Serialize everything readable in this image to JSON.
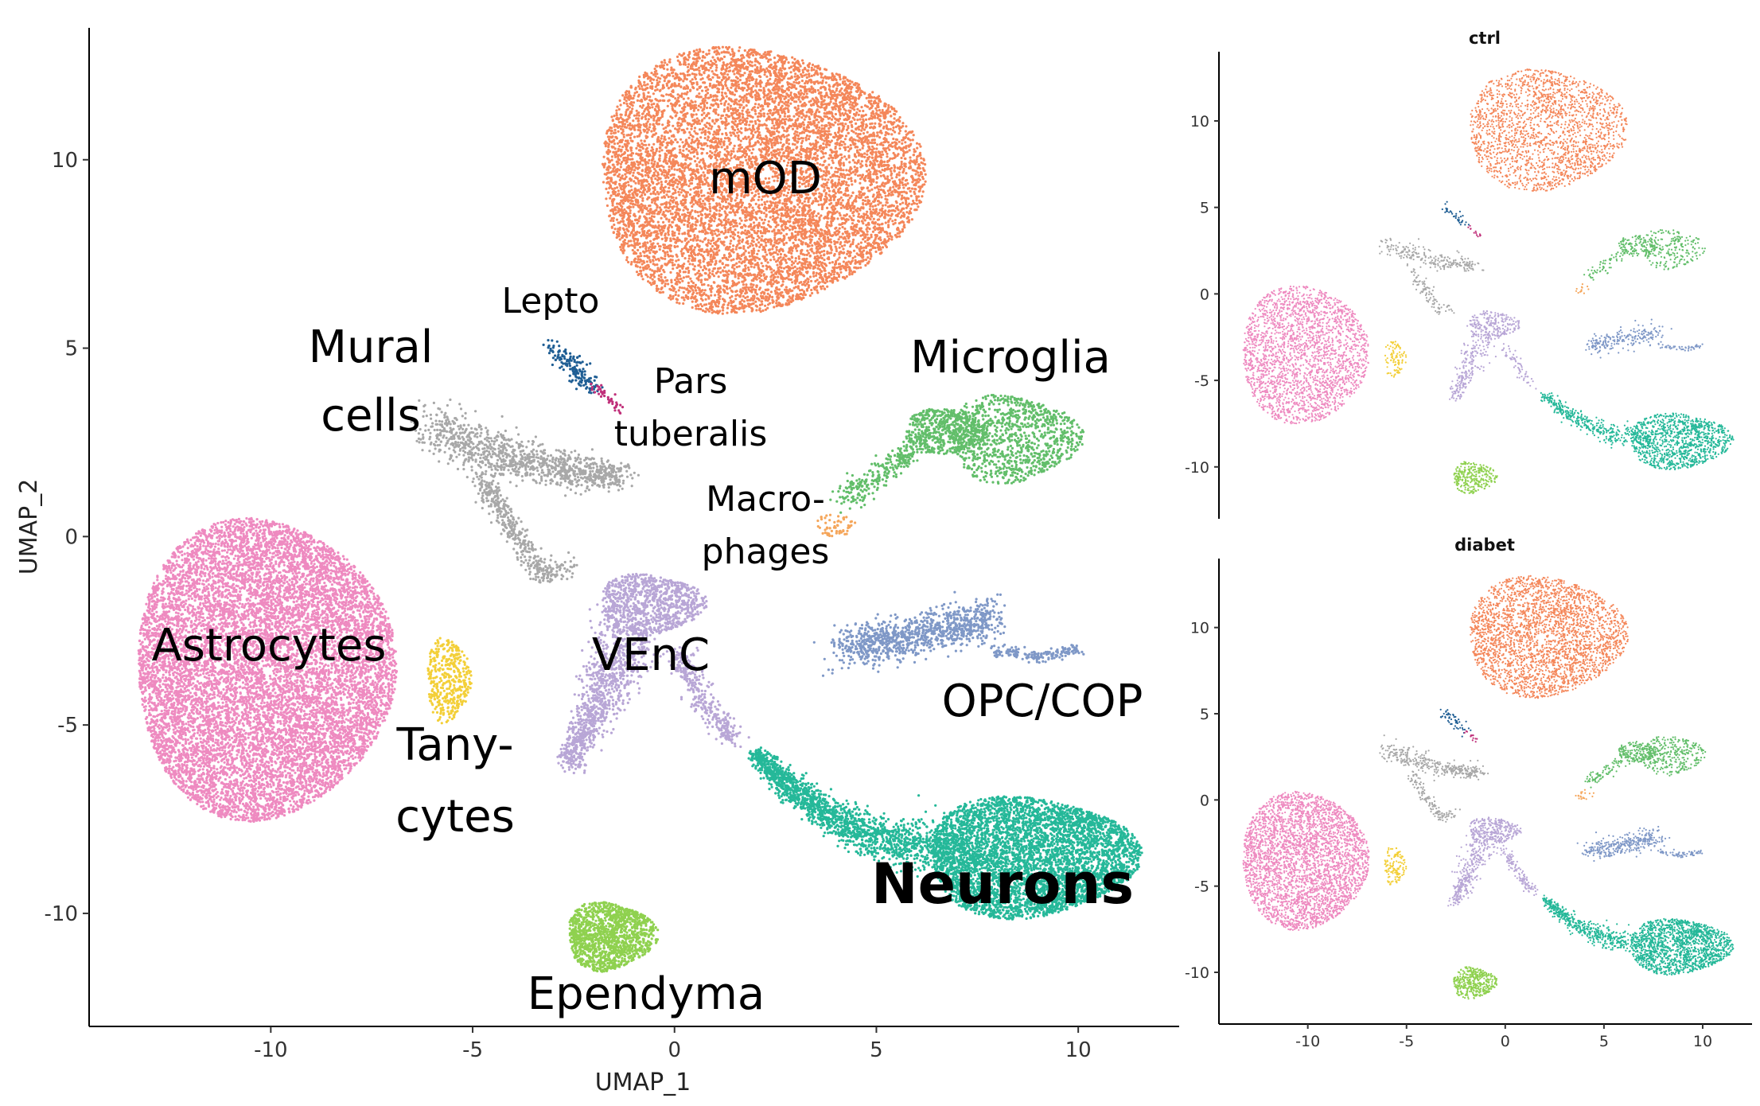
{
  "chart_data": [
    {
      "type": "scatter",
      "panel": "main",
      "title": "",
      "xlabel": "UMAP_1",
      "ylabel": "UMAP_2",
      "xlim": [
        -14.5,
        12.5
      ],
      "ylim": [
        -13,
        13.5
      ],
      "xticks": [
        -10,
        -5,
        0,
        5,
        10
      ],
      "yticks": [
        -10,
        -5,
        0,
        5,
        10
      ],
      "grid": false,
      "legend": "none",
      "clusters": [
        {
          "name": "mOD",
          "color": "#F4875A",
          "center": [
            2.0,
            9.5
          ],
          "n_points": 9000
        },
        {
          "name": "Microglia",
          "color": "#62BE6A",
          "center": [
            7.5,
            2.7
          ],
          "n_points": 1800
        },
        {
          "name": "Macro-\nphages",
          "color": "#F5A65B",
          "center": [
            4.0,
            0.3
          ],
          "n_points": 60
        },
        {
          "name": "Lepto",
          "color": "#1F5E94",
          "center": [
            -2.5,
            4.4
          ],
          "n_points": 160
        },
        {
          "name": "Pars tuberalis",
          "color": "#C0307A",
          "center": [
            -1.6,
            3.7
          ],
          "n_points": 40
        },
        {
          "name": "Mural cells",
          "color": "#A8A8A8",
          "center": [
            -4.5,
            2.0
          ],
          "n_points": 1500
        },
        {
          "name": "Astrocytes",
          "color": "#EE8AC0",
          "center": [
            -10.2,
            -3.5
          ],
          "n_points": 11000
        },
        {
          "name": "Tany-\ncytes",
          "color": "#F3CF38",
          "center": [
            -5.6,
            -3.7
          ],
          "n_points": 400
        },
        {
          "name": "VEnC",
          "color": "#B8A6D6",
          "center": [
            -0.8,
            -3.0
          ],
          "n_points": 2300
        },
        {
          "name": "OPC/COP",
          "color": "#7F98C7",
          "center": [
            6.5,
            -3.0
          ],
          "n_points": 1200
        },
        {
          "name": "Neurons",
          "color": "#25B899",
          "center": [
            9.0,
            -8.5
          ],
          "n_points": 6500
        },
        {
          "name": "Ependyma",
          "color": "#8FD14F",
          "center": [
            -1.6,
            -10.6
          ],
          "n_points": 1300
        }
      ]
    },
    {
      "type": "scatter",
      "panel": "facet",
      "title": "ctrl",
      "xlim": [
        -14.5,
        12.5
      ],
      "ylim": [
        -13,
        14
      ],
      "xticks": [
        -10,
        -5,
        0,
        5,
        10
      ],
      "yticks": [
        -10,
        -5,
        0,
        5,
        10
      ],
      "show_xticks": false,
      "grid": false
    },
    {
      "type": "scatter",
      "panel": "facet",
      "title": "diabet",
      "xlim": [
        -14.5,
        12.5
      ],
      "ylim": [
        -13,
        14
      ],
      "xticks": [
        -10,
        -5,
        0,
        5,
        10
      ],
      "yticks": [
        -10,
        -5,
        0,
        5,
        10
      ],
      "show_xticks": true,
      "grid": false
    }
  ]
}
